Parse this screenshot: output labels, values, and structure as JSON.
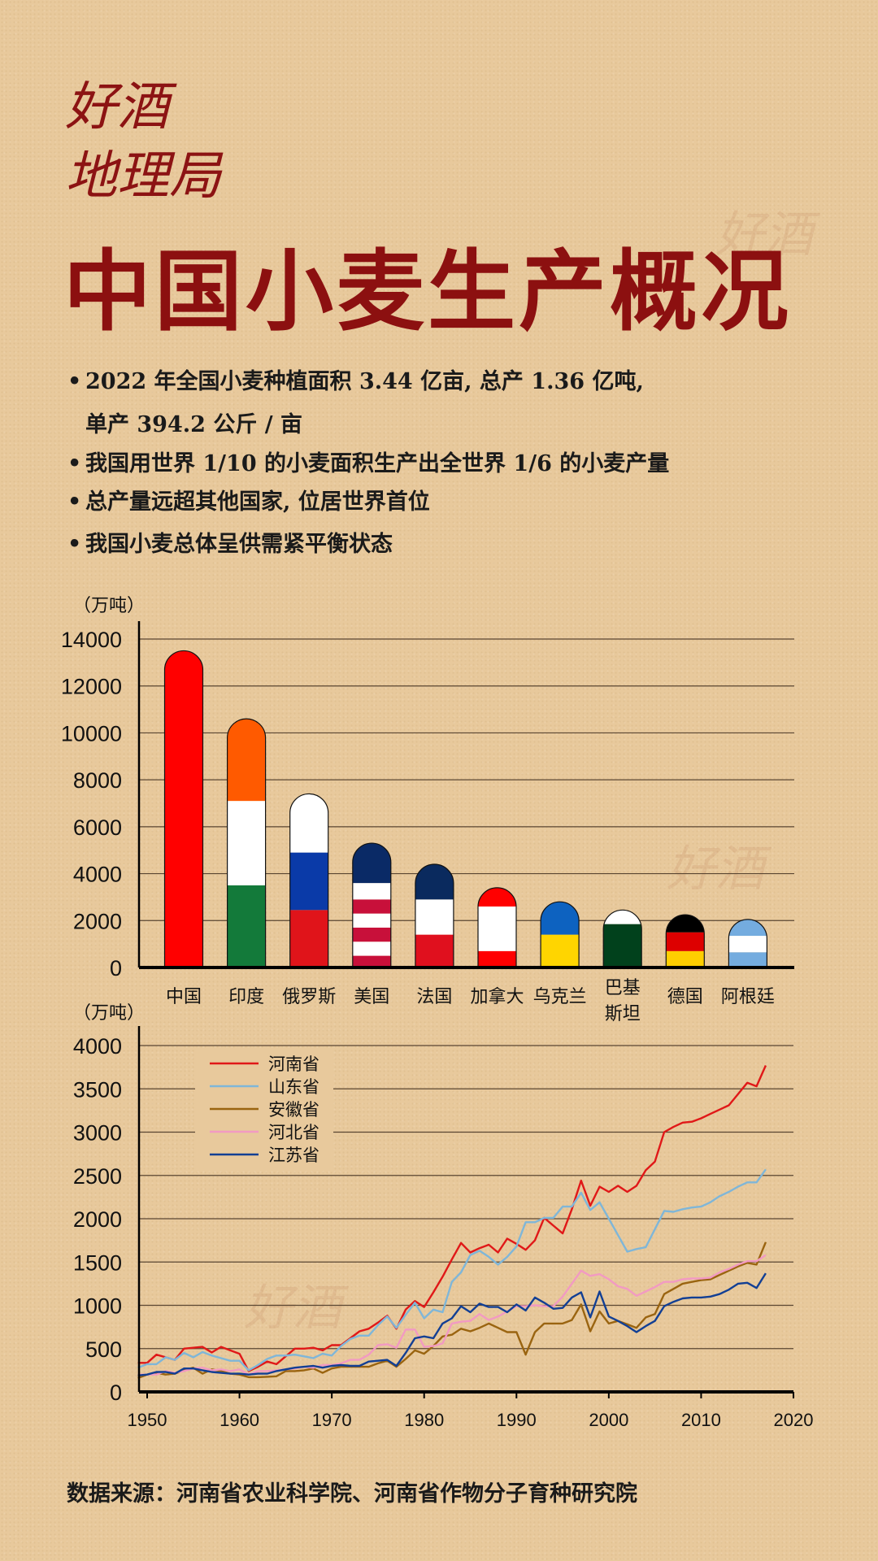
{
  "brand": {
    "line1": "好酒",
    "line2": "地理局"
  },
  "title": "中国小麦生产概况",
  "bullets": [
    "2022 年全国小麦种植面积 3.44 亿亩, 总产 1.36 亿吨,",
    "单产 394.2 公斤 / 亩",
    "我国用世界 1/10 的小麦面积生产出全世界 1/6 的小麦产量",
    "总产量远超其他国家, 位居世界首位",
    "我国小麦总体呈供需紧平衡状态"
  ],
  "source": "数据来源：河南省农业科学院、河南省作物分子育种研究院",
  "colors": {
    "title": "#8c1010",
    "background": "#e8c99c",
    "grid": "#5a4632"
  },
  "chart_data": [
    {
      "type": "bar",
      "title": "",
      "ylabel": "（万吨）",
      "xlabel": "",
      "ylim": [
        0,
        14000
      ],
      "yticks": [
        0,
        2000,
        4000,
        6000,
        8000,
        10000,
        12000,
        14000
      ],
      "grid": true,
      "categories": [
        "中国",
        "印度",
        "俄罗斯",
        "美国",
        "法国",
        "加拿大",
        "乌克兰",
        "巴基斯坦",
        "德国",
        "阿根廷"
      ],
      "category_lines": [
        [
          "中国"
        ],
        [
          "印度"
        ],
        [
          "俄罗斯"
        ],
        [
          "美国"
        ],
        [
          "法国"
        ],
        [
          "加拿大"
        ],
        [
          "乌克兰"
        ],
        [
          "巴基",
          "斯坦"
        ],
        [
          "德国"
        ],
        [
          "阿根廷"
        ]
      ],
      "values": [
        13500,
        10600,
        7400,
        5300,
        4400,
        3400,
        2800,
        2450,
        2250,
        2050
      ],
      "flag_bands": [
        [
          {
            "to": 13500,
            "color": "#ff0000"
          }
        ],
        [
          {
            "to": 3500,
            "color": "#137a3a"
          },
          {
            "to": 7100,
            "color": "#ffffff"
          },
          {
            "to": 10600,
            "color": "#ff5a00"
          }
        ],
        [
          {
            "to": 2450,
            "color": "#e0141a"
          },
          {
            "to": 4900,
            "color": "#0a3aa8"
          },
          {
            "to": 7400,
            "color": "#ffffff"
          }
        ],
        [
          {
            "to": 500,
            "color": "#c8103a"
          },
          {
            "to": 1100,
            "color": "#ffffff"
          },
          {
            "to": 1700,
            "color": "#c8103a"
          },
          {
            "to": 2300,
            "color": "#ffffff"
          },
          {
            "to": 2900,
            "color": "#c8103a"
          },
          {
            "to": 3600,
            "color": "#ffffff"
          },
          {
            "to": 5300,
            "color": "#0a2a66"
          }
        ],
        [
          {
            "to": 1400,
            "color": "#e0101e"
          },
          {
            "to": 2900,
            "color": "#ffffff"
          },
          {
            "to": 4400,
            "color": "#0a2a5e"
          }
        ],
        [
          {
            "to": 700,
            "color": "#ff0000"
          },
          {
            "to": 2600,
            "color": "#ffffff"
          },
          {
            "to": 3400,
            "color": "#ff0000"
          }
        ],
        [
          {
            "to": 1400,
            "color": "#ffd500"
          },
          {
            "to": 2800,
            "color": "#0d62c0"
          }
        ],
        [
          {
            "to": 1850,
            "color": "#01411c"
          },
          {
            "to": 2450,
            "color": "#ffffff"
          }
        ],
        [
          {
            "to": 700,
            "color": "#ffce00"
          },
          {
            "to": 1500,
            "color": "#dd0000"
          },
          {
            "to": 2250,
            "color": "#000000"
          }
        ],
        [
          {
            "to": 650,
            "color": "#74acdf"
          },
          {
            "to": 1350,
            "color": "#ffffff"
          },
          {
            "to": 2050,
            "color": "#74acdf"
          }
        ]
      ]
    },
    {
      "type": "line",
      "title": "",
      "ylabel": "（万吨）",
      "xlabel": "",
      "xlim": [
        1950,
        2020
      ],
      "ylim": [
        0,
        4000
      ],
      "xticks": [
        1950,
        1960,
        1970,
        1980,
        1990,
        2000,
        2010,
        2020
      ],
      "yticks": [
        0,
        500,
        1000,
        1500,
        2000,
        2500,
        3000,
        3500,
        4000
      ],
      "grid": true,
      "legend": "top-left",
      "x_start": 1949,
      "series": [
        {
          "name": "河南省",
          "color": "#e01818",
          "values": [
            335,
            335,
            430,
            400,
            370,
            500,
            510,
            520,
            455,
            520,
            480,
            440,
            240,
            290,
            350,
            320,
            410,
            500,
            500,
            510,
            480,
            540,
            540,
            620,
            700,
            730,
            800,
            880,
            730,
            950,
            1050,
            980,
            1150,
            1330,
            1530,
            1720,
            1610,
            1660,
            1700,
            1610,
            1770,
            1710,
            1640,
            1750,
            2010,
            1920,
            1830,
            2110,
            2440,
            2150,
            2370,
            2310,
            2380,
            2310,
            2380,
            2560,
            2660,
            3000,
            3060,
            3110,
            3120,
            3160,
            3210,
            3260,
            3310,
            3440,
            3570,
            3530,
            3770
          ]
        },
        {
          "name": "山东省",
          "color": "#7fb6d8",
          "values": [
            280,
            320,
            320,
            400,
            370,
            450,
            400,
            460,
            420,
            390,
            360,
            360,
            250,
            310,
            380,
            420,
            420,
            430,
            410,
            390,
            440,
            420,
            530,
            610,
            650,
            650,
            770,
            870,
            740,
            890,
            1030,
            850,
            950,
            920,
            1270,
            1380,
            1580,
            1630,
            1560,
            1470,
            1560,
            1680,
            1960,
            1960,
            2010,
            2010,
            2140,
            2140,
            2300,
            2100,
            2190,
            2000,
            1810,
            1620,
            1650,
            1670,
            1880,
            2090,
            2080,
            2110,
            2130,
            2140,
            2190,
            2260,
            2310,
            2370,
            2420,
            2420,
            2570
          ]
        },
        {
          "name": "安徽省",
          "color": "#9a6410",
          "values": [
            160,
            200,
            220,
            200,
            210,
            250,
            280,
            210,
            260,
            240,
            210,
            200,
            170,
            170,
            175,
            180,
            240,
            240,
            250,
            270,
            220,
            270,
            290,
            290,
            290,
            290,
            330,
            360,
            290,
            380,
            480,
            440,
            530,
            640,
            660,
            730,
            700,
            740,
            790,
            740,
            690,
            690,
            430,
            690,
            790,
            790,
            790,
            830,
            1010,
            700,
            930,
            790,
            820,
            780,
            740,
            860,
            900,
            1130,
            1190,
            1250,
            1270,
            1290,
            1300,
            1350,
            1400,
            1450,
            1490,
            1470,
            1730
          ]
        },
        {
          "name": "河北省",
          "color": "#f29ac2",
          "values": [
            200,
            200,
            200,
            240,
            220,
            240,
            270,
            280,
            250,
            260,
            240,
            260,
            200,
            240,
            240,
            250,
            260,
            270,
            290,
            280,
            310,
            310,
            330,
            370,
            370,
            430,
            540,
            550,
            510,
            720,
            720,
            520,
            530,
            560,
            790,
            810,
            820,
            900,
            830,
            870,
            930,
            990,
            990,
            1000,
            990,
            990,
            1100,
            1250,
            1400,
            1340,
            1360,
            1300,
            1220,
            1190,
            1110,
            1160,
            1210,
            1270,
            1270,
            1300,
            1310,
            1310,
            1320,
            1380,
            1420,
            1470,
            1510,
            1510,
            1580
          ]
        },
        {
          "name": "江苏省",
          "color": "#123f94",
          "values": [
            190,
            200,
            230,
            230,
            210,
            270,
            270,
            250,
            230,
            220,
            210,
            210,
            200,
            210,
            210,
            240,
            260,
            280,
            290,
            300,
            280,
            300,
            310,
            300,
            300,
            350,
            360,
            370,
            300,
            450,
            620,
            640,
            620,
            790,
            850,
            990,
            920,
            1020,
            980,
            980,
            920,
            1010,
            940,
            1090,
            1030,
            960,
            970,
            1090,
            1150,
            860,
            1160,
            870,
            820,
            760,
            690,
            760,
            820,
            990,
            1040,
            1080,
            1090,
            1090,
            1100,
            1130,
            1180,
            1250,
            1260,
            1200,
            1370
          ]
        }
      ]
    }
  ]
}
